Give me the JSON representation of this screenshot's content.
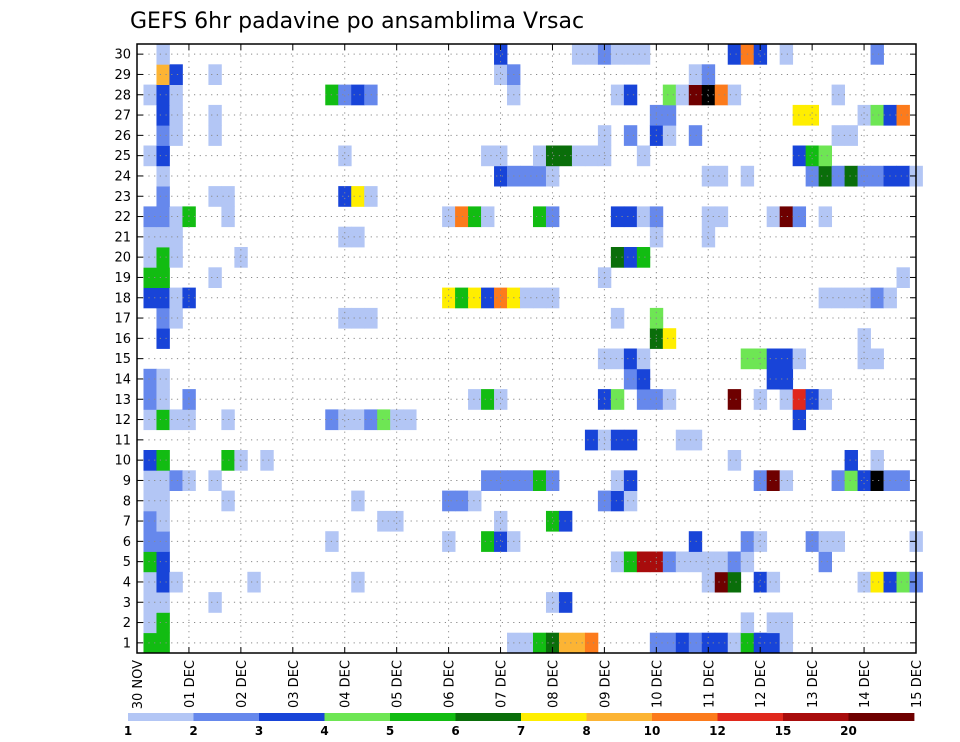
{
  "chart_data": {
    "type": "heatmap",
    "title": "GEFS 6hr padavine po ansamblima Vrsac",
    "xlabel": "",
    "ylabel": "",
    "x_ticks": [
      "30 NOV",
      "01 DEC",
      "02 DEC",
      "03 DEC",
      "04 DEC",
      "05 DEC",
      "06 DEC",
      "07 DEC",
      "08 DEC",
      "09 DEC",
      "10 DEC",
      "11 DEC",
      "12 DEC",
      "13 DEC",
      "14 DEC",
      "15 DEC"
    ],
    "y_ticks": [
      1,
      2,
      3,
      4,
      5,
      6,
      7,
      8,
      9,
      10,
      11,
      12,
      13,
      14,
      15,
      16,
      17,
      18,
      19,
      20,
      21,
      22,
      23,
      24,
      25,
      26,
      27,
      28,
      29,
      30
    ],
    "xlim": [
      0,
      60
    ],
    "ylim": [
      0.5,
      30.5
    ],
    "grid": true,
    "colorbar": {
      "levels": [
        "1",
        "2",
        "3",
        "4",
        "5",
        "6",
        "7",
        "8",
        "10",
        "12",
        "15",
        "20"
      ],
      "colors": [
        "#b3c6f5",
        "#6688ec",
        "#1844d8",
        "#6ee654",
        "#12bc12",
        "#0a6e0a",
        "#ffee00",
        "#fcb434",
        "#fc7b1c",
        "#e0281c",
        "#a80c0c",
        "#6e0000"
      ]
    },
    "cells": [
      [
        1,
        1,
        5
      ],
      [
        2,
        1,
        5
      ],
      [
        29,
        1,
        1
      ],
      [
        30,
        1,
        1
      ],
      [
        31,
        1,
        5
      ],
      [
        32,
        1,
        6
      ],
      [
        33,
        1,
        8
      ],
      [
        34,
        1,
        8
      ],
      [
        35,
        1,
        9
      ],
      [
        40,
        1,
        2
      ],
      [
        41,
        1,
        2
      ],
      [
        42,
        1,
        3
      ],
      [
        43,
        1,
        2
      ],
      [
        44,
        1,
        3
      ],
      [
        45,
        1,
        3
      ],
      [
        46,
        1,
        1
      ],
      [
        47,
        1,
        5
      ],
      [
        48,
        1,
        3
      ],
      [
        49,
        1,
        3
      ],
      [
        50,
        1,
        1
      ],
      [
        1,
        2,
        1
      ],
      [
        2,
        2,
        5
      ],
      [
        47,
        2,
        1
      ],
      [
        49,
        2,
        1
      ],
      [
        50,
        2,
        1
      ],
      [
        1,
        3,
        1
      ],
      [
        2,
        3,
        1
      ],
      [
        6,
        3,
        1
      ],
      [
        32,
        3,
        1
      ],
      [
        33,
        3,
        3
      ],
      [
        1,
        4,
        1
      ],
      [
        2,
        4,
        3
      ],
      [
        3,
        4,
        1
      ],
      [
        9,
        4,
        1
      ],
      [
        17,
        4,
        1
      ],
      [
        44,
        4,
        1
      ],
      [
        45,
        4,
        12
      ],
      [
        46,
        4,
        6
      ],
      [
        48,
        4,
        3
      ],
      [
        49,
        4,
        1
      ],
      [
        56,
        4,
        1
      ],
      [
        57,
        4,
        7
      ],
      [
        58,
        4,
        3
      ],
      [
        59,
        4,
        4
      ],
      [
        60,
        4,
        2
      ],
      [
        1,
        5,
        5
      ],
      [
        2,
        5,
        3
      ],
      [
        37,
        5,
        1
      ],
      [
        38,
        5,
        5
      ],
      [
        39,
        5,
        11
      ],
      [
        40,
        5,
        11
      ],
      [
        41,
        5,
        2
      ],
      [
        42,
        5,
        1
      ],
      [
        43,
        5,
        1
      ],
      [
        44,
        5,
        1
      ],
      [
        45,
        5,
        1
      ],
      [
        46,
        5,
        2
      ],
      [
        47,
        5,
        1
      ],
      [
        53,
        5,
        2
      ],
      [
        1,
        6,
        2
      ],
      [
        2,
        6,
        2
      ],
      [
        15,
        6,
        1
      ],
      [
        24,
        6,
        1
      ],
      [
        27,
        6,
        5
      ],
      [
        28,
        6,
        3
      ],
      [
        29,
        6,
        1
      ],
      [
        43,
        6,
        3
      ],
      [
        47,
        6,
        2
      ],
      [
        48,
        6,
        1
      ],
      [
        52,
        6,
        2
      ],
      [
        53,
        6,
        1
      ],
      [
        54,
        6,
        1
      ],
      [
        60,
        6,
        1
      ],
      [
        1,
        7,
        2
      ],
      [
        2,
        7,
        1
      ],
      [
        19,
        7,
        1
      ],
      [
        20,
        7,
        1
      ],
      [
        28,
        7,
        1
      ],
      [
        32,
        7,
        5
      ],
      [
        33,
        7,
        3
      ],
      [
        1,
        8,
        1
      ],
      [
        2,
        8,
        1
      ],
      [
        7,
        8,
        1
      ],
      [
        17,
        8,
        1
      ],
      [
        24,
        8,
        2
      ],
      [
        25,
        8,
        2
      ],
      [
        26,
        8,
        1
      ],
      [
        36,
        8,
        2
      ],
      [
        37,
        8,
        3
      ],
      [
        38,
        8,
        1
      ],
      [
        1,
        9,
        1
      ],
      [
        2,
        9,
        1
      ],
      [
        3,
        9,
        2
      ],
      [
        4,
        9,
        1
      ],
      [
        6,
        9,
        1
      ],
      [
        27,
        9,
        2
      ],
      [
        28,
        9,
        2
      ],
      [
        29,
        9,
        2
      ],
      [
        30,
        9,
        2
      ],
      [
        31,
        9,
        5
      ],
      [
        32,
        9,
        2
      ],
      [
        37,
        9,
        1
      ],
      [
        38,
        9,
        3
      ],
      [
        48,
        9,
        2
      ],
      [
        49,
        9,
        12
      ],
      [
        50,
        9,
        1
      ],
      [
        54,
        9,
        2
      ],
      [
        55,
        9,
        4
      ],
      [
        56,
        9,
        3
      ],
      [
        57,
        9,
        13
      ],
      [
        58,
        9,
        2
      ],
      [
        59,
        9,
        2
      ],
      [
        1,
        10,
        3
      ],
      [
        2,
        10,
        5
      ],
      [
        7,
        10,
        5
      ],
      [
        8,
        10,
        1
      ],
      [
        10,
        10,
        1
      ],
      [
        46,
        10,
        1
      ],
      [
        55,
        10,
        3
      ],
      [
        57,
        10,
        1
      ],
      [
        35,
        11,
        3
      ],
      [
        36,
        11,
        1
      ],
      [
        37,
        11,
        3
      ],
      [
        38,
        11,
        3
      ],
      [
        42,
        11,
        1
      ],
      [
        43,
        11,
        1
      ],
      [
        1,
        12,
        1
      ],
      [
        2,
        12,
        5
      ],
      [
        3,
        12,
        1
      ],
      [
        4,
        12,
        1
      ],
      [
        7,
        12,
        1
      ],
      [
        15,
        12,
        2
      ],
      [
        16,
        12,
        1
      ],
      [
        17,
        12,
        1
      ],
      [
        18,
        12,
        2
      ],
      [
        19,
        12,
        4
      ],
      [
        20,
        12,
        1
      ],
      [
        21,
        12,
        1
      ],
      [
        51,
        12,
        3
      ],
      [
        1,
        13,
        2
      ],
      [
        2,
        13,
        1
      ],
      [
        4,
        13,
        2
      ],
      [
        26,
        13,
        1
      ],
      [
        27,
        13,
        5
      ],
      [
        28,
        13,
        1
      ],
      [
        36,
        13,
        3
      ],
      [
        37,
        13,
        4
      ],
      [
        39,
        13,
        2
      ],
      [
        40,
        13,
        2
      ],
      [
        41,
        13,
        1
      ],
      [
        46,
        13,
        12
      ],
      [
        48,
        13,
        1
      ],
      [
        50,
        13,
        1
      ],
      [
        51,
        13,
        10
      ],
      [
        52,
        13,
        3
      ],
      [
        53,
        13,
        1
      ],
      [
        1,
        14,
        2
      ],
      [
        2,
        14,
        1
      ],
      [
        38,
        14,
        2
      ],
      [
        39,
        14,
        3
      ],
      [
        49,
        14,
        3
      ],
      [
        50,
        14,
        3
      ],
      [
        36,
        15,
        1
      ],
      [
        37,
        15,
        1
      ],
      [
        38,
        15,
        3
      ],
      [
        39,
        15,
        1
      ],
      [
        47,
        15,
        4
      ],
      [
        48,
        15,
        4
      ],
      [
        49,
        15,
        3
      ],
      [
        50,
        15,
        3
      ],
      [
        51,
        15,
        1
      ],
      [
        56,
        15,
        1
      ],
      [
        57,
        15,
        1
      ],
      [
        2,
        16,
        3
      ],
      [
        40,
        16,
        6
      ],
      [
        41,
        16,
        7
      ],
      [
        56,
        16,
        1
      ],
      [
        2,
        17,
        2
      ],
      [
        3,
        17,
        1
      ],
      [
        16,
        17,
        1
      ],
      [
        17,
        17,
        1
      ],
      [
        18,
        17,
        1
      ],
      [
        37,
        17,
        1
      ],
      [
        40,
        17,
        4
      ],
      [
        1,
        18,
        3
      ],
      [
        2,
        18,
        3
      ],
      [
        3,
        18,
        1
      ],
      [
        4,
        18,
        3
      ],
      [
        24,
        18,
        7
      ],
      [
        25,
        18,
        5
      ],
      [
        26,
        18,
        7
      ],
      [
        27,
        18,
        3
      ],
      [
        28,
        18,
        9
      ],
      [
        29,
        18,
        7
      ],
      [
        30,
        18,
        1
      ],
      [
        31,
        18,
        1
      ],
      [
        32,
        18,
        1
      ],
      [
        53,
        18,
        1
      ],
      [
        54,
        18,
        1
      ],
      [
        55,
        18,
        1
      ],
      [
        56,
        18,
        1
      ],
      [
        57,
        18,
        2
      ],
      [
        58,
        18,
        1
      ],
      [
        1,
        19,
        5
      ],
      [
        2,
        19,
        5
      ],
      [
        6,
        19,
        1
      ],
      [
        36,
        19,
        1
      ],
      [
        59,
        19,
        1
      ],
      [
        1,
        20,
        1
      ],
      [
        2,
        20,
        5
      ],
      [
        3,
        20,
        1
      ],
      [
        8,
        20,
        1
      ],
      [
        37,
        20,
        6
      ],
      [
        38,
        20,
        3
      ],
      [
        39,
        20,
        5
      ],
      [
        1,
        21,
        1
      ],
      [
        2,
        21,
        1
      ],
      [
        3,
        21,
        1
      ],
      [
        16,
        21,
        1
      ],
      [
        17,
        21,
        1
      ],
      [
        40,
        21,
        1
      ],
      [
        44,
        21,
        1
      ],
      [
        1,
        22,
        2
      ],
      [
        2,
        22,
        2
      ],
      [
        3,
        22,
        1
      ],
      [
        4,
        22,
        5
      ],
      [
        7,
        22,
        1
      ],
      [
        24,
        22,
        1
      ],
      [
        25,
        22,
        9
      ],
      [
        26,
        22,
        5
      ],
      [
        27,
        22,
        1
      ],
      [
        31,
        22,
        5
      ],
      [
        32,
        22,
        2
      ],
      [
        37,
        22,
        3
      ],
      [
        38,
        22,
        3
      ],
      [
        39,
        22,
        1
      ],
      [
        40,
        22,
        2
      ],
      [
        44,
        22,
        1
      ],
      [
        45,
        22,
        1
      ],
      [
        49,
        22,
        1
      ],
      [
        50,
        22,
        12
      ],
      [
        51,
        22,
        2
      ],
      [
        53,
        22,
        1
      ],
      [
        2,
        23,
        2
      ],
      [
        6,
        23,
        1
      ],
      [
        7,
        23,
        1
      ],
      [
        16,
        23,
        3
      ],
      [
        17,
        23,
        7
      ],
      [
        18,
        23,
        1
      ],
      [
        2,
        24,
        1
      ],
      [
        28,
        24,
        3
      ],
      [
        29,
        24,
        2
      ],
      [
        30,
        24,
        2
      ],
      [
        31,
        24,
        2
      ],
      [
        32,
        24,
        1
      ],
      [
        44,
        24,
        1
      ],
      [
        45,
        24,
        1
      ],
      [
        47,
        24,
        1
      ],
      [
        52,
        24,
        2
      ],
      [
        53,
        24,
        6
      ],
      [
        54,
        24,
        2
      ],
      [
        55,
        24,
        6
      ],
      [
        56,
        24,
        2
      ],
      [
        57,
        24,
        2
      ],
      [
        58,
        24,
        3
      ],
      [
        59,
        24,
        3
      ],
      [
        60,
        24,
        1
      ],
      [
        1,
        25,
        1
      ],
      [
        2,
        25,
        3
      ],
      [
        16,
        25,
        1
      ],
      [
        27,
        25,
        1
      ],
      [
        28,
        25,
        1
      ],
      [
        31,
        25,
        1
      ],
      [
        32,
        25,
        6
      ],
      [
        33,
        25,
        6
      ],
      [
        34,
        25,
        1
      ],
      [
        35,
        25,
        1
      ],
      [
        36,
        25,
        1
      ],
      [
        39,
        25,
        1
      ],
      [
        51,
        25,
        3
      ],
      [
        52,
        25,
        5
      ],
      [
        53,
        25,
        4
      ],
      [
        2,
        26,
        2
      ],
      [
        3,
        26,
        1
      ],
      [
        6,
        26,
        1
      ],
      [
        36,
        26,
        1
      ],
      [
        38,
        26,
        2
      ],
      [
        40,
        26,
        3
      ],
      [
        41,
        26,
        1
      ],
      [
        43,
        26,
        2
      ],
      [
        54,
        26,
        1
      ],
      [
        55,
        26,
        1
      ],
      [
        2,
        27,
        3
      ],
      [
        3,
        27,
        1
      ],
      [
        6,
        27,
        1
      ],
      [
        40,
        27,
        2
      ],
      [
        41,
        27,
        2
      ],
      [
        51,
        27,
        7
      ],
      [
        52,
        27,
        7
      ],
      [
        56,
        27,
        1
      ],
      [
        57,
        27,
        4
      ],
      [
        58,
        27,
        3
      ],
      [
        59,
        27,
        9
      ],
      [
        1,
        28,
        1
      ],
      [
        2,
        28,
        3
      ],
      [
        3,
        28,
        1
      ],
      [
        15,
        28,
        5
      ],
      [
        16,
        28,
        2
      ],
      [
        17,
        28,
        3
      ],
      [
        18,
        28,
        2
      ],
      [
        29,
        28,
        1
      ],
      [
        37,
        28,
        1
      ],
      [
        38,
        28,
        3
      ],
      [
        41,
        28,
        4
      ],
      [
        42,
        28,
        1
      ],
      [
        43,
        28,
        12
      ],
      [
        44,
        28,
        13
      ],
      [
        45,
        28,
        9
      ],
      [
        46,
        28,
        1
      ],
      [
        54,
        28,
        1
      ],
      [
        2,
        29,
        8
      ],
      [
        3,
        29,
        3
      ],
      [
        6,
        29,
        1
      ],
      [
        28,
        29,
        1
      ],
      [
        29,
        29,
        2
      ],
      [
        43,
        29,
        1
      ],
      [
        44,
        29,
        2
      ],
      [
        2,
        30,
        1
      ],
      [
        28,
        30,
        3
      ],
      [
        34,
        30,
        1
      ],
      [
        35,
        30,
        1
      ],
      [
        36,
        30,
        2
      ],
      [
        37,
        30,
        1
      ],
      [
        38,
        30,
        1
      ],
      [
        39,
        30,
        1
      ],
      [
        46,
        30,
        3
      ],
      [
        47,
        30,
        9
      ],
      [
        48,
        30,
        3
      ],
      [
        50,
        30,
        1
      ],
      [
        57,
        30,
        2
      ]
    ]
  }
}
